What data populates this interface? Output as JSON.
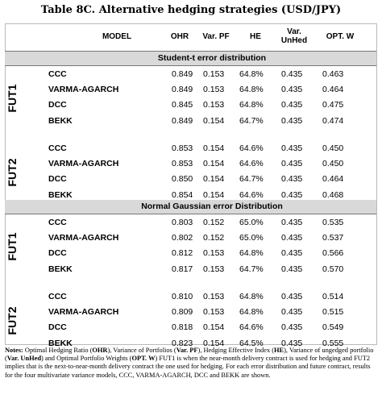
{
  "title": "Table 8C. Alternative hedging strategies (USD/JPY)",
  "headers": {
    "model": "MODEL",
    "ohr": "OHR",
    "varpf": "Var. PF",
    "he": "HE",
    "varunhed": "Var. UnHed",
    "optw": "OPT. W"
  },
  "sections": [
    {
      "label": "Student-t error distribution",
      "groups": [
        {
          "label": "FUT1",
          "rows": [
            [
              "CCC",
              "0.849",
              "0.153",
              "64.8%",
              "0.435",
              "0.463"
            ],
            [
              "VARMA-AGARCH",
              "0.849",
              "0.153",
              "64.8%",
              "0.435",
              "0.464"
            ],
            [
              "DCC",
              "0.845",
              "0.153",
              "64.8%",
              "0.435",
              "0.475"
            ],
            [
              "BEKK",
              "0.849",
              "0.154",
              "64.7%",
              "0.435",
              "0.474"
            ]
          ]
        },
        {
          "label": "FUT2",
          "rows": [
            [
              "CCC",
              "0.853",
              "0.154",
              "64.6%",
              "0.435",
              "0.450"
            ],
            [
              "VARMA-AGARCH",
              "0.853",
              "0.154",
              "64.6%",
              "0.435",
              "0.450"
            ],
            [
              "DCC",
              "0.850",
              "0.154",
              "64.7%",
              "0.435",
              "0.464"
            ],
            [
              "BEKK",
              "0.854",
              "0.154",
              "64.6%",
              "0.435",
              "0.468"
            ]
          ]
        }
      ]
    },
    {
      "label": "Normal Gaussian error Distribution",
      "groups": [
        {
          "label": "FUT1",
          "rows": [
            [
              "CCC",
              "0.803",
              "0.152",
              "65.0%",
              "0.435",
              "0.535"
            ],
            [
              "VARMA-AGARCH",
              "0.802",
              "0.152",
              "65.0%",
              "0.435",
              "0.537"
            ],
            [
              "DCC",
              "0.812",
              "0.153",
              "64.8%",
              "0.435",
              "0.566"
            ],
            [
              "BEKK",
              "0.817",
              "0.153",
              "64.7%",
              "0.435",
              "0.570"
            ]
          ]
        },
        {
          "label": "FUT2",
          "rows": [
            [
              "CCC",
              "0.810",
              "0.153",
              "64.8%",
              "0.435",
              "0.514"
            ],
            [
              "VARMA-AGARCH",
              "0.809",
              "0.153",
              "64.8%",
              "0.435",
              "0.515"
            ],
            [
              "DCC",
              "0.818",
              "0.154",
              "64.6%",
              "0.435",
              "0.549"
            ],
            [
              "BEKK",
              "0.823",
              "0.154",
              "64.5%",
              "0.435",
              "0.555"
            ]
          ]
        }
      ]
    }
  ],
  "notes": [
    {
      "t": "Notes: ",
      "b": true
    },
    {
      "t": "Optimal Hedging Ratio (",
      "b": false
    },
    {
      "t": "OHR",
      "b": true
    },
    {
      "t": "), Variance of Portfolios (",
      "b": false
    },
    {
      "t": "Var. PF",
      "b": true
    },
    {
      "t": "), Hedging Effective Index (",
      "b": false
    },
    {
      "t": "HE",
      "b": true
    },
    {
      "t": "), Variance of ungedged portfolio (",
      "b": false
    },
    {
      "t": "Var. UnHed",
      "b": true
    },
    {
      "t": ") and Optimal Portfolio Weights (",
      "b": false
    },
    {
      "t": "OPT. W",
      "b": true
    },
    {
      "t": ")   FUT1 is when the near-month delivery contract is used for hedging and FUT2 implies that is the next-to-near-month delivery contract the one used for hedging. For each error distribution and future contract, results for the four multivariate variance models, CCC, VARMA-AGARCH, DCC and BEKK are shown.",
      "b": false
    }
  ]
}
